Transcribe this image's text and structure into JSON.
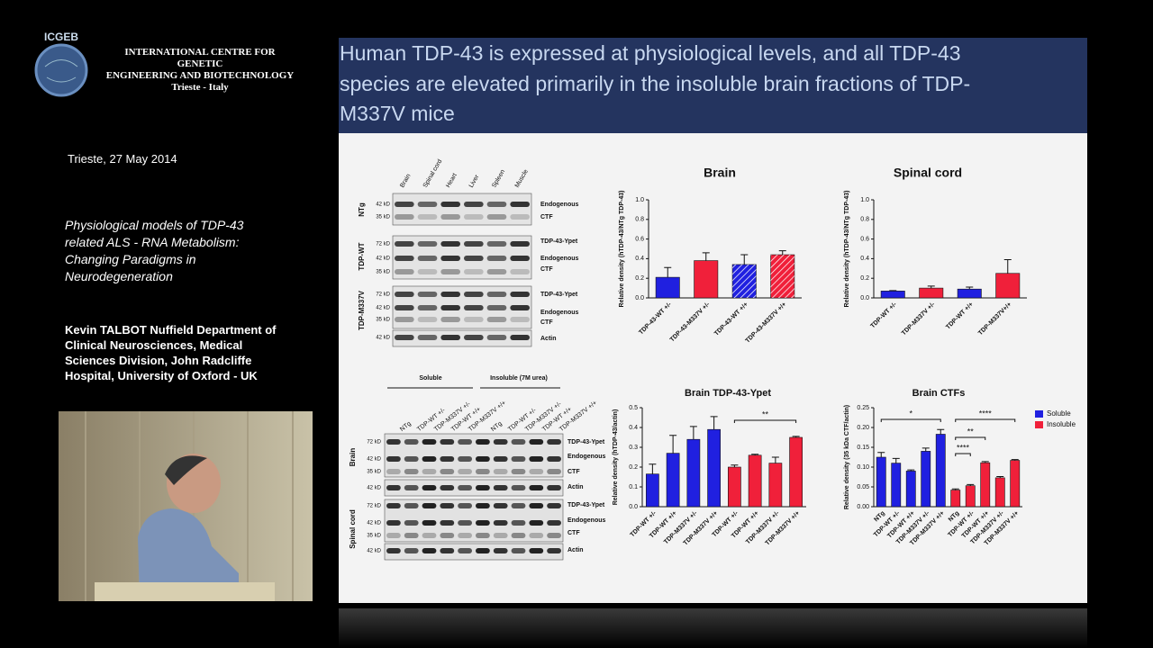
{
  "header": {
    "logo": "ICGEB",
    "org": [
      "INTERNATIONAL CENTRE FOR GENETIC",
      "ENGINEERING AND BIOTECHNOLOGY",
      "Trieste - Italy"
    ],
    "date": "Trieste, 27 May 2014",
    "talk_title": [
      "Physiological models of TDP-43",
      "related ALS - RNA Metabolism:",
      "Changing Paradigms in",
      "Neurodegeneration"
    ],
    "speaker": [
      "Kevin TALBOT Nuffield Department of",
      "Clinical Neurosciences, Medical",
      "Sciences Division, John Radcliffe",
      "Hospital, University of Oxford - UK"
    ]
  },
  "slide": {
    "title": [
      "Human TDP-43 is expressed at physiological levels, and all TDP-43",
      "species are elevated primarily in the insoluble brain fractions of TDP-",
      "M337V mice"
    ],
    "blot_top": {
      "lanes": [
        "Brain",
        "Spinal cord",
        "Heart",
        "Liver",
        "Spleen",
        "Muscle"
      ],
      "groups": [
        "NTg",
        "TDP-WT",
        "TDP-M337V"
      ],
      "kd": [
        "42 kD",
        "35 kD",
        "72 kD",
        "42 kD",
        "35 kD",
        "72 kD",
        "42 kD",
        "35 kD",
        "42 kD"
      ],
      "bands": [
        "Endogenous",
        "CTF",
        "TDP-43-Ypet",
        "Endogenous",
        "CTF",
        "TDP-43-Ypet",
        "Endogenous",
        "CTF",
        "Actin"
      ]
    },
    "blot_bottom": {
      "fractions": [
        "Soluble",
        "Insoluble (7M urea)"
      ],
      "lanes": [
        "NTg",
        "TDP-WT +/-",
        "TDP-M337V +/-",
        "TDP-WT +/+",
        "TDP-M337V +/+",
        "NTg",
        "TDP-WT +/-",
        "TDP-M337V +/-",
        "TDP-WT +/+",
        "TDP-M337V +/+"
      ],
      "tissues": [
        "Brain",
        "Spinal cord"
      ],
      "kd": [
        "72 kD",
        "42 kD",
        "35 kD",
        "42 kD",
        "72 kD",
        "42 kD",
        "35 kD",
        "42 kD"
      ],
      "bands": [
        "TDP-43-Ypet",
        "Endogenous",
        "CTF",
        "Actin",
        "TDP-43-Ypet",
        "Endogenous",
        "CTF",
        "Actin"
      ]
    },
    "charts": [
      {
        "type": "bar",
        "title": "Brain",
        "ylabel": "Relative density (hTDP-43/NTg TDP-43)",
        "categories": [
          "TDP-43-WT +/-",
          "TDP-43-M337V +/-",
          "TDP-43-WT +/+",
          "TDP-43-M337V +/+"
        ],
        "values": [
          0.21,
          0.38,
          0.34,
          0.44
        ],
        "errors": [
          0.1,
          0.08,
          0.1,
          0.04
        ],
        "colors": [
          "#2020e0",
          "#f0203a",
          "#2020e0",
          "#f0203a"
        ],
        "hatch": [
          false,
          false,
          true,
          true
        ],
        "ylim": [
          0,
          1
        ],
        "yticks": [
          {
            "value": 0,
            "label": "0.0"
          },
          0.2,
          0.4,
          0.6,
          0.8,
          {
            "value": 1,
            "label": "1.0"
          }
        ]
      },
      {
        "type": "bar",
        "title": "Spinal cord",
        "ylabel": "Relative density (hTDP-43/NTg TDP-43)",
        "categories": [
          "TDP-WT +/-",
          "TDP-M337V +/-",
          "TDP-WT +/+",
          "TDP-M337V+/+"
        ],
        "values": [
          0.07,
          0.1,
          0.09,
          0.25
        ],
        "errors": [
          0.005,
          0.02,
          0.02,
          0.14
        ],
        "colors": [
          "#2020e0",
          "#f0203a",
          "#2020e0",
          "#f0203a"
        ],
        "hatch": [
          false,
          false,
          false,
          false
        ],
        "ylim": [
          0,
          1
        ],
        "yticks": [
          {
            "value": 0,
            "label": "0.0"
          },
          0.2,
          0.4,
          0.6,
          0.8,
          {
            "value": 1,
            "label": "1.0"
          }
        ]
      },
      {
        "type": "bar",
        "title": "Brain TDP-43-Ypet",
        "ylabel": "Relative density (hTDP-43/actin)",
        "categories": [
          "TDP-WT +/-",
          "TDP-WT +/+",
          "TDP-M337V +/-",
          "TDP-M337V +/+",
          "TDP-WT +/-",
          "TDP-WT +/+",
          "TDP-M337V +/-",
          "TDP-M337V +/+"
        ],
        "values": [
          0.165,
          0.27,
          0.34,
          0.39,
          0.2,
          0.26,
          0.22,
          0.35
        ],
        "errors": [
          0.05,
          0.09,
          0.065,
          0.065,
          0.01,
          0.005,
          0.03,
          0.005
        ],
        "colors": [
          "#2020e0",
          "#2020e0",
          "#2020e0",
          "#2020e0",
          "#f0203a",
          "#f0203a",
          "#f0203a",
          "#f0203a"
        ],
        "hatch": [
          false,
          false,
          false,
          false,
          false,
          false,
          false,
          false
        ],
        "ylim": [
          0,
          0.5
        ],
        "yticks": [
          {
            "value": 0,
            "label": "0.0"
          },
          0.1,
          0.2,
          0.3,
          0.4,
          0.5
        ],
        "annotations": [
          "**"
        ]
      },
      {
        "type": "bar",
        "title": "Brain CTFs",
        "ylabel": "Relative density (35 kDa CTF/actin)",
        "categories": [
          "NTg",
          "TDP-WT +/-",
          "TDP-WT +/+",
          "TDP-M337V +/-",
          "TDP-M337V +/+",
          "NTg",
          "TDP-WT +/-",
          "TDP-WT +/+",
          "TDP-M337V +/-",
          "TDP-M337V +/+"
        ],
        "values": [
          0.125,
          0.11,
          0.09,
          0.14,
          0.183,
          0.042,
          0.053,
          0.111,
          0.073,
          0.117
        ],
        "errors": [
          0.012,
          0.012,
          0.003,
          0.008,
          0.012,
          0.003,
          0.003,
          0.003,
          0.003,
          0.002
        ],
        "colors": [
          "#2020e0",
          "#2020e0",
          "#2020e0",
          "#2020e0",
          "#2020e0",
          "#f0203a",
          "#f0203a",
          "#f0203a",
          "#f0203a",
          "#f0203a"
        ],
        "hatch": [
          false,
          false,
          false,
          false,
          false,
          false,
          false,
          false,
          false,
          false
        ],
        "ylim": [
          0,
          0.25
        ],
        "yticks": [
          {
            "value": 0,
            "label": "0.00"
          },
          0.05,
          {
            "value": 0.1,
            "label": "0.10"
          },
          0.15,
          {
            "value": 0.2,
            "label": "0.20"
          },
          0.25
        ],
        "annotations": [
          "*",
          "****",
          "**",
          "****"
        ],
        "legend": [
          {
            "name": "Soluble",
            "color": "#2020e0"
          },
          {
            "name": "Insoluble",
            "color": "#f0203a"
          }
        ]
      }
    ]
  }
}
